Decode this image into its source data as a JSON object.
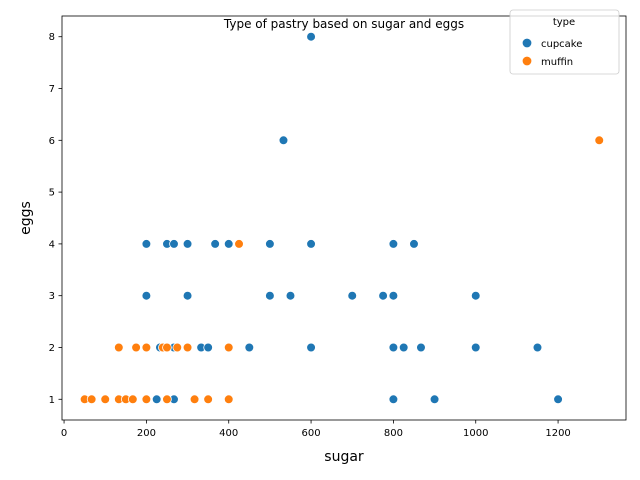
{
  "chart_data": {
    "type": "scatter",
    "title": "Type of pastry based on sugar and eggs",
    "xlabel": "sugar",
    "ylabel": "eggs",
    "xlim": [
      -5,
      1365
    ],
    "ylim": [
      0.6,
      8.4
    ],
    "xticks": [
      0,
      200,
      400,
      600,
      800,
      1000,
      1200
    ],
    "yticks": [
      1,
      2,
      3,
      4,
      5,
      6,
      7,
      8
    ],
    "grid": false,
    "legend": {
      "title": "type",
      "placement": "top-right"
    },
    "series": [
      {
        "name": "cupcake",
        "color": "#1f77b4",
        "points": [
          [
            600,
            8
          ],
          [
            533,
            6
          ],
          [
            200,
            4
          ],
          [
            250,
            4
          ],
          [
            267,
            4
          ],
          [
            300,
            4
          ],
          [
            367,
            4
          ],
          [
            400,
            4
          ],
          [
            500,
            4
          ],
          [
            600,
            4
          ],
          [
            800,
            4
          ],
          [
            850,
            4
          ],
          [
            200,
            3
          ],
          [
            300,
            3
          ],
          [
            500,
            3
          ],
          [
            550,
            3
          ],
          [
            700,
            3
          ],
          [
            775,
            3
          ],
          [
            800,
            3
          ],
          [
            1000,
            3
          ],
          [
            233,
            2
          ],
          [
            267,
            2
          ],
          [
            333,
            2
          ],
          [
            350,
            2
          ],
          [
            450,
            2
          ],
          [
            600,
            2
          ],
          [
            800,
            2
          ],
          [
            825,
            2
          ],
          [
            867,
            2
          ],
          [
            1000,
            2
          ],
          [
            1150,
            2
          ],
          [
            225,
            1
          ],
          [
            267,
            1
          ],
          [
            800,
            1
          ],
          [
            900,
            1
          ],
          [
            1200,
            1
          ]
        ]
      },
      {
        "name": "muffin",
        "color": "#ff7f0e",
        "points": [
          [
            1300,
            6
          ],
          [
            425,
            4
          ],
          [
            133,
            2
          ],
          [
            175,
            2
          ],
          [
            200,
            2
          ],
          [
            240,
            2
          ],
          [
            250,
            2
          ],
          [
            275,
            2
          ],
          [
            300,
            2
          ],
          [
            400,
            2
          ],
          [
            50,
            1
          ],
          [
            67,
            1
          ],
          [
            100,
            1
          ],
          [
            133,
            1
          ],
          [
            150,
            1
          ],
          [
            167,
            1
          ],
          [
            200,
            1
          ],
          [
            250,
            1
          ],
          [
            317,
            1
          ],
          [
            350,
            1
          ],
          [
            400,
            1
          ]
        ]
      }
    ]
  }
}
